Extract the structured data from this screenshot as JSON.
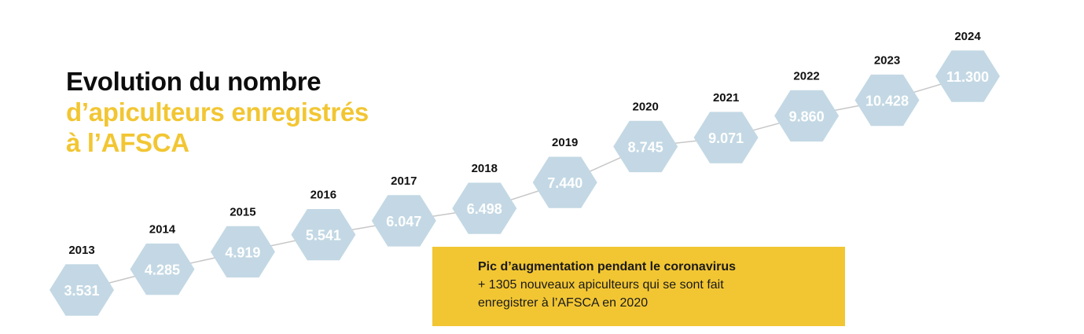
{
  "title": {
    "line1": "Evolution du nombre",
    "line2": "d’apiculteurs enregistrés",
    "line3": "à l’AFSCA"
  },
  "annotation": {
    "title": "Pic d’augmentation pendant le coronavirus",
    "line1": "+ 1305 nouveaux apiculteurs qui se sont fait",
    "line2": "enregistrer à l’AFSCA en 2020"
  },
  "colors": {
    "title_black": "#0d0d0d",
    "title_yellow": "#f2c633",
    "hexagon": "#c3d8e4",
    "hexagon_text": "#ffffff",
    "connector": "#c7c7c7",
    "annotation_bg": "#f2c633"
  },
  "chart_data": {
    "type": "line",
    "marker": "hexagon",
    "x": [
      "2013",
      "2014",
      "2015",
      "2016",
      "2017",
      "2018",
      "2019",
      "2020",
      "2021",
      "2022",
      "2023",
      "2024"
    ],
    "values": [
      3531,
      4285,
      4919,
      5541,
      6047,
      6498,
      7440,
      8745,
      9071,
      9860,
      10428,
      11300
    ],
    "value_labels": [
      "3.531",
      "4.285",
      "4.919",
      "5.541",
      "6.047",
      "6.498",
      "7.440",
      "8.745",
      "9.071",
      "9.860",
      "10.428",
      "11.300"
    ],
    "grid": false,
    "legend": "none"
  }
}
